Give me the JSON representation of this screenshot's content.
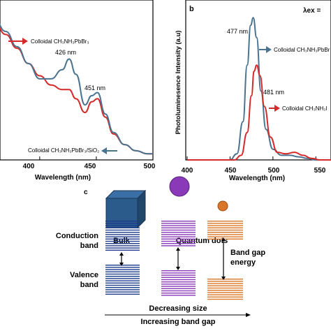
{
  "colors": {
    "red": "#d42a2a",
    "blue": "#4a7390",
    "bulk": "#2a5b8a",
    "bulk_top": "#3a6fa6",
    "bulk_side": "#1f4668",
    "bands_blue": "#1f3b8c",
    "purple": "#8a3ab8",
    "orange": "#d8772a",
    "dark_orange": "#c6651e"
  },
  "chart_data": [
    {
      "type": "line",
      "panel": "a",
      "xlabel": "Wavelength (nm)",
      "ylabel": "",
      "xlim": [
        360,
        500
      ],
      "ylim": [
        0,
        1
      ],
      "x_ticks": [
        400,
        450,
        500
      ],
      "x_tick_labels": [
        "400",
        "450",
        "500"
      ],
      "series": [
        {
          "name": "Colloidal CH₃NH₃PbBr₃",
          "color_key": "red",
          "x": [
            360,
            370,
            380,
            390,
            400,
            410,
            420,
            426,
            432,
            440,
            446,
            451,
            458,
            465,
            475,
            485,
            495,
            500
          ],
          "y": [
            0.9,
            0.82,
            0.73,
            0.63,
            0.55,
            0.49,
            0.46,
            0.46,
            0.4,
            0.31,
            0.38,
            0.4,
            0.28,
            0.17,
            0.1,
            0.06,
            0.04,
            0.04
          ]
        },
        {
          "name": "Colloidal CH₃NH₃PbBr₃/SiO₂",
          "color_key": "blue",
          "x": [
            360,
            370,
            380,
            390,
            400,
            410,
            420,
            426,
            432,
            440,
            446,
            451,
            458,
            465,
            475,
            485,
            495,
            500
          ],
          "y": [
            0.92,
            0.84,
            0.74,
            0.63,
            0.53,
            0.53,
            0.59,
            0.66,
            0.56,
            0.36,
            0.42,
            0.44,
            0.3,
            0.18,
            0.1,
            0.06,
            0.04,
            0.04
          ]
        }
      ],
      "annotations": [
        {
          "text": "426 nm",
          "x": 426
        },
        {
          "text": "451 nm",
          "x": 451
        }
      ]
    },
    {
      "type": "line",
      "panel": "b",
      "xlabel": "Wavelength (nm)",
      "ylabel": "Photoluminesence Intensity (a.u)",
      "xlim": [
        400,
        575
      ],
      "ylim": [
        0,
        1
      ],
      "x_ticks": [
        400,
        450,
        500,
        550
      ],
      "x_tick_labels": [
        "400",
        "450",
        "500",
        "550"
      ],
      "series": [
        {
          "name": "Colloidal CH₃NH₃PbBr₃/SiO₂",
          "color_key": "blue",
          "x": [
            400,
            450,
            458,
            465,
            470,
            474,
            477,
            481,
            486,
            492,
            500,
            510,
            520,
            530,
            540,
            550,
            575
          ],
          "y": [
            0.0,
            0.0,
            0.04,
            0.25,
            0.62,
            0.88,
            0.93,
            0.8,
            0.45,
            0.2,
            0.07,
            0.03,
            0.03,
            0.02,
            0.01,
            0.0,
            0.0
          ]
        },
        {
          "name": "Colloidal CH₃NH₃PbBr₃",
          "color_key": "red",
          "x": [
            400,
            455,
            463,
            470,
            475,
            478,
            481,
            485,
            490,
            497,
            505,
            515,
            525,
            535,
            545,
            555,
            575
          ],
          "y": [
            0.0,
            0.0,
            0.03,
            0.18,
            0.42,
            0.58,
            0.62,
            0.55,
            0.35,
            0.15,
            0.05,
            0.04,
            0.05,
            0.03,
            0.01,
            0.0,
            0.0
          ]
        }
      ],
      "annotations": [
        {
          "text": "477 nm",
          "x": 477
        },
        {
          "text": "481 nm",
          "x": 481
        }
      ]
    }
  ],
  "panel_a": {
    "label_red": "Colloidal CH₃NH₃PbBr₃",
    "label_blue": "Colloidal CH₃NH₃PbBr₃/SiO₂",
    "peak1": "426 nm",
    "peak2": "451 nm",
    "xlabel": "Wavelength (nm)",
    "ticks": [
      "400",
      "450",
      "500"
    ]
  },
  "panel_b": {
    "letter": "b",
    "lambda": "λex =",
    "ylabel": "Photoluminesence Intensity (a.u)",
    "label_blue": "Colloidal CH₃NH₃PbBr",
    "label_red": "Colloidal CH₃NH₃l",
    "peak1": "477 nm",
    "peak2": "481 nm",
    "xlabel": "Wavelength (nm)",
    "ticks": [
      "400",
      "450",
      "500",
      "550"
    ]
  },
  "panel_c": {
    "letter": "c",
    "bulk": "Bulk",
    "qd": "Quantum dots",
    "conduction": [
      "Conduction",
      "band"
    ],
    "valence": [
      "Valence",
      "band"
    ],
    "band_gap": [
      "Band gap",
      "energy"
    ],
    "decreasing": "Decreasing size",
    "increasing": "Increasing band gap"
  }
}
